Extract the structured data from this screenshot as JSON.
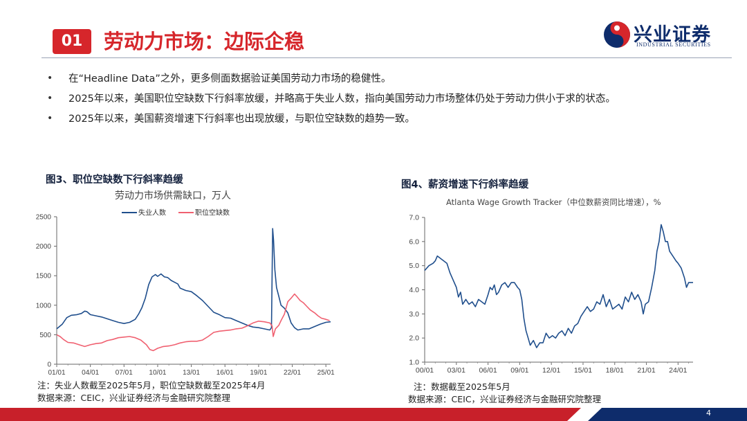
{
  "header": {
    "section_number": "01",
    "title": "劳动力市场：边际企稳",
    "logo_cn": "兴业证券",
    "logo_en": "INDUSTRIAL SECURITIES"
  },
  "bullets": [
    "在“Headline Data”之外，更多侧面数据验证美国劳动力市场的稳健性。",
    "2025年以来，美国职位空缺数下行斜率放缓，并略高于失业人数，指向美国劳动力市场整体仍处于劳动力供小于求的状态。",
    "2025年以来，美国薪资增速下行斜率也出现放缓，与职位空缺数的趋势一致。"
  ],
  "bullet_glyph": "•",
  "page_number": "4",
  "colors": {
    "brand_red": "#d6262b",
    "navy": "#0e2c6b",
    "series_blue": "#1f4e8c",
    "series_pink": "#f06070"
  },
  "figure3": {
    "title": "图3、职位空缺数下行斜率趋缓",
    "subtitle": "劳动力市场供需缺口，万人",
    "note": "注：失业人数截至2025年5月，职位空缺数截至2025年4月",
    "source": "数据来源：CEIC，兴业证券经济与金融研究院整理"
  },
  "figure4": {
    "title": "图4、薪资增速下行斜率趋缓",
    "subtitle": "Atlanta Wage Growth Tracker（中位数薪资同比增速），%",
    "note": "注：数据截至2025年5月",
    "source": "数据来源：CEIC，兴业证券经济与金融研究院整理"
  },
  "chart_data": [
    {
      "type": "line",
      "title": "劳动力市场供需缺口，万人",
      "x_range": [
        2001.0,
        2025.42
      ],
      "x_ticks": [
        "01/01",
        "04/01",
        "07/01",
        "10/01",
        "13/01",
        "16/01",
        "19/01",
        "22/01",
        "25/01"
      ],
      "ylim": [
        0,
        2500
      ],
      "y_ticks": [
        "0",
        "500",
        "1000",
        "1500",
        "2000",
        "2500"
      ],
      "grid": false,
      "legend": "top-center",
      "series": [
        {
          "name": "失业人数",
          "color": "#1f4e8c",
          "points": [
            [
              2001.0,
              600
            ],
            [
              2001.5,
              680
            ],
            [
              2001.9,
              790
            ],
            [
              2002.3,
              830
            ],
            [
              2002.8,
              840
            ],
            [
              2003.2,
              860
            ],
            [
              2003.5,
              900
            ],
            [
              2003.7,
              890
            ],
            [
              2004.0,
              840
            ],
            [
              2004.5,
              820
            ],
            [
              2005.0,
              800
            ],
            [
              2005.5,
              770
            ],
            [
              2006.0,
              740
            ],
            [
              2006.5,
              710
            ],
            [
              2007.0,
              690
            ],
            [
              2007.5,
              710
            ],
            [
              2008.0,
              760
            ],
            [
              2008.3,
              850
            ],
            [
              2008.6,
              960
            ],
            [
              2008.9,
              1120
            ],
            [
              2009.2,
              1350
            ],
            [
              2009.5,
              1480
            ],
            [
              2009.8,
              1520
            ],
            [
              2010.0,
              1490
            ],
            [
              2010.3,
              1530
            ],
            [
              2010.6,
              1480
            ],
            [
              2010.9,
              1470
            ],
            [
              2011.2,
              1420
            ],
            [
              2011.5,
              1390
            ],
            [
              2011.8,
              1360
            ],
            [
              2012.0,
              1290
            ],
            [
              2012.5,
              1250
            ],
            [
              2013.0,
              1230
            ],
            [
              2013.5,
              1160
            ],
            [
              2014.0,
              1080
            ],
            [
              2014.5,
              980
            ],
            [
              2015.0,
              880
            ],
            [
              2015.5,
              840
            ],
            [
              2016.0,
              790
            ],
            [
              2016.5,
              780
            ],
            [
              2017.0,
              740
            ],
            [
              2017.5,
              700
            ],
            [
              2018.0,
              660
            ],
            [
              2018.5,
              630
            ],
            [
              2019.0,
              620
            ],
            [
              2019.5,
              600
            ],
            [
              2020.0,
              580
            ],
            [
              2020.15,
              620
            ],
            [
              2020.25,
              2300
            ],
            [
              2020.33,
              2100
            ],
            [
              2020.45,
              1600
            ],
            [
              2020.6,
              1300
            ],
            [
              2020.8,
              1150
            ],
            [
              2021.0,
              1000
            ],
            [
              2021.3,
              950
            ],
            [
              2021.6,
              870
            ],
            [
              2021.9,
              700
            ],
            [
              2022.2,
              620
            ],
            [
              2022.5,
              580
            ],
            [
              2023.0,
              600
            ],
            [
              2023.5,
              600
            ],
            [
              2024.0,
              640
            ],
            [
              2024.5,
              680
            ],
            [
              2025.0,
              710
            ],
            [
              2025.42,
              720
            ]
          ]
        },
        {
          "name": "职位空缺数",
          "color": "#f06070",
          "points": [
            [
              2001.0,
              500
            ],
            [
              2001.3,
              470
            ],
            [
              2001.6,
              420
            ],
            [
              2002.0,
              370
            ],
            [
              2002.5,
              360
            ],
            [
              2003.0,
              330
            ],
            [
              2003.5,
              300
            ],
            [
              2004.0,
              330
            ],
            [
              2004.5,
              350
            ],
            [
              2005.0,
              360
            ],
            [
              2005.5,
              400
            ],
            [
              2006.0,
              420
            ],
            [
              2006.5,
              450
            ],
            [
              2007.0,
              460
            ],
            [
              2007.5,
              470
            ],
            [
              2008.0,
              450
            ],
            [
              2008.5,
              410
            ],
            [
              2009.0,
              330
            ],
            [
              2009.3,
              250
            ],
            [
              2009.6,
              230
            ],
            [
              2010.0,
              270
            ],
            [
              2010.5,
              300
            ],
            [
              2011.0,
              310
            ],
            [
              2011.5,
              330
            ],
            [
              2012.0,
              360
            ],
            [
              2012.5,
              380
            ],
            [
              2013.0,
              390
            ],
            [
              2013.5,
              390
            ],
            [
              2014.0,
              410
            ],
            [
              2014.5,
              470
            ],
            [
              2015.0,
              540
            ],
            [
              2015.5,
              560
            ],
            [
              2016.0,
              570
            ],
            [
              2016.5,
              580
            ],
            [
              2017.0,
              600
            ],
            [
              2017.5,
              610
            ],
            [
              2018.0,
              650
            ],
            [
              2018.5,
              700
            ],
            [
              2019.0,
              730
            ],
            [
              2019.5,
              720
            ],
            [
              2020.0,
              700
            ],
            [
              2020.2,
              650
            ],
            [
              2020.3,
              470
            ],
            [
              2020.5,
              600
            ],
            [
              2020.8,
              660
            ],
            [
              2021.0,
              740
            ],
            [
              2021.3,
              850
            ],
            [
              2021.6,
              1060
            ],
            [
              2021.9,
              1120
            ],
            [
              2022.2,
              1190
            ],
            [
              2022.4,
              1150
            ],
            [
              2022.7,
              1080
            ],
            [
              2023.0,
              1040
            ],
            [
              2023.3,
              980
            ],
            [
              2023.6,
              920
            ],
            [
              2024.0,
              870
            ],
            [
              2024.3,
              820
            ],
            [
              2024.6,
              780
            ],
            [
              2025.0,
              760
            ],
            [
              2025.33,
              740
            ]
          ]
        }
      ]
    },
    {
      "type": "line",
      "title": "Atlanta Wage Growth Tracker（中位数薪资同比增速），%",
      "x_range": [
        2000.0,
        2025.42
      ],
      "x_ticks": [
        "00/01",
        "03/01",
        "06/01",
        "09/01",
        "12/01",
        "15/01",
        "18/01",
        "21/01",
        "24/01"
      ],
      "ylim": [
        1.0,
        7.0
      ],
      "y_ticks": [
        "1.0",
        "2.0",
        "3.0",
        "4.0",
        "5.0",
        "6.0",
        "7.0"
      ],
      "grid": false,
      "series": [
        {
          "color": "#1f4e8c",
          "points": [
            [
              2000.0,
              4.8
            ],
            [
              2000.4,
              5.0
            ],
            [
              2000.8,
              5.1
            ],
            [
              2001.0,
              5.2
            ],
            [
              2001.2,
              5.4
            ],
            [
              2001.5,
              5.3
            ],
            [
              2001.8,
              5.2
            ],
            [
              2002.1,
              5.1
            ],
            [
              2002.4,
              4.7
            ],
            [
              2002.7,
              4.4
            ],
            [
              2003.0,
              4.1
            ],
            [
              2003.2,
              3.7
            ],
            [
              2003.4,
              3.9
            ],
            [
              2003.6,
              3.4
            ],
            [
              2003.9,
              3.6
            ],
            [
              2004.2,
              3.4
            ],
            [
              2004.5,
              3.5
            ],
            [
              2004.8,
              3.3
            ],
            [
              2005.1,
              3.6
            ],
            [
              2005.4,
              3.5
            ],
            [
              2005.7,
              3.4
            ],
            [
              2006.0,
              3.8
            ],
            [
              2006.2,
              4.1
            ],
            [
              2006.4,
              4.0
            ],
            [
              2006.6,
              4.2
            ],
            [
              2006.8,
              3.8
            ],
            [
              2007.0,
              3.9
            ],
            [
              2007.3,
              4.2
            ],
            [
              2007.6,
              4.3
            ],
            [
              2007.9,
              4.1
            ],
            [
              2008.2,
              4.3
            ],
            [
              2008.5,
              4.3
            ],
            [
              2008.8,
              4.1
            ],
            [
              2009.0,
              4.0
            ],
            [
              2009.2,
              3.6
            ],
            [
              2009.4,
              2.8
            ],
            [
              2009.6,
              2.3
            ],
            [
              2009.8,
              2.0
            ],
            [
              2010.0,
              1.7
            ],
            [
              2010.3,
              1.9
            ],
            [
              2010.6,
              1.6
            ],
            [
              2010.9,
              1.8
            ],
            [
              2011.2,
              1.8
            ],
            [
              2011.5,
              2.2
            ],
            [
              2011.8,
              2.0
            ],
            [
              2012.1,
              2.1
            ],
            [
              2012.4,
              2.0
            ],
            [
              2012.7,
              2.2
            ],
            [
              2013.0,
              2.3
            ],
            [
              2013.3,
              2.1
            ],
            [
              2013.6,
              2.4
            ],
            [
              2013.9,
              2.2
            ],
            [
              2014.2,
              2.5
            ],
            [
              2014.5,
              2.6
            ],
            [
              2014.8,
              2.9
            ],
            [
              2015.1,
              3.1
            ],
            [
              2015.4,
              3.3
            ],
            [
              2015.7,
              3.1
            ],
            [
              2016.0,
              3.2
            ],
            [
              2016.3,
              3.5
            ],
            [
              2016.6,
              3.4
            ],
            [
              2016.9,
              3.8
            ],
            [
              2017.2,
              3.3
            ],
            [
              2017.5,
              3.6
            ],
            [
              2017.8,
              3.2
            ],
            [
              2018.1,
              3.3
            ],
            [
              2018.4,
              3.4
            ],
            [
              2018.7,
              3.2
            ],
            [
              2019.0,
              3.7
            ],
            [
              2019.3,
              3.5
            ],
            [
              2019.6,
              3.9
            ],
            [
              2019.9,
              3.6
            ],
            [
              2020.2,
              3.8
            ],
            [
              2020.5,
              3.5
            ],
            [
              2020.7,
              3.0
            ],
            [
              2020.9,
              3.4
            ],
            [
              2021.2,
              3.5
            ],
            [
              2021.5,
              4.1
            ],
            [
              2021.8,
              4.8
            ],
            [
              2022.0,
              5.6
            ],
            [
              2022.2,
              6.0
            ],
            [
              2022.4,
              6.7
            ],
            [
              2022.6,
              6.4
            ],
            [
              2022.8,
              6.0
            ],
            [
              2023.0,
              6.0
            ],
            [
              2023.2,
              5.6
            ],
            [
              2023.5,
              5.4
            ],
            [
              2023.8,
              5.2
            ],
            [
              2024.0,
              5.1
            ],
            [
              2024.3,
              4.9
            ],
            [
              2024.6,
              4.5
            ],
            [
              2024.8,
              4.1
            ],
            [
              2025.0,
              4.3
            ],
            [
              2025.42,
              4.3
            ]
          ]
        }
      ]
    }
  ]
}
